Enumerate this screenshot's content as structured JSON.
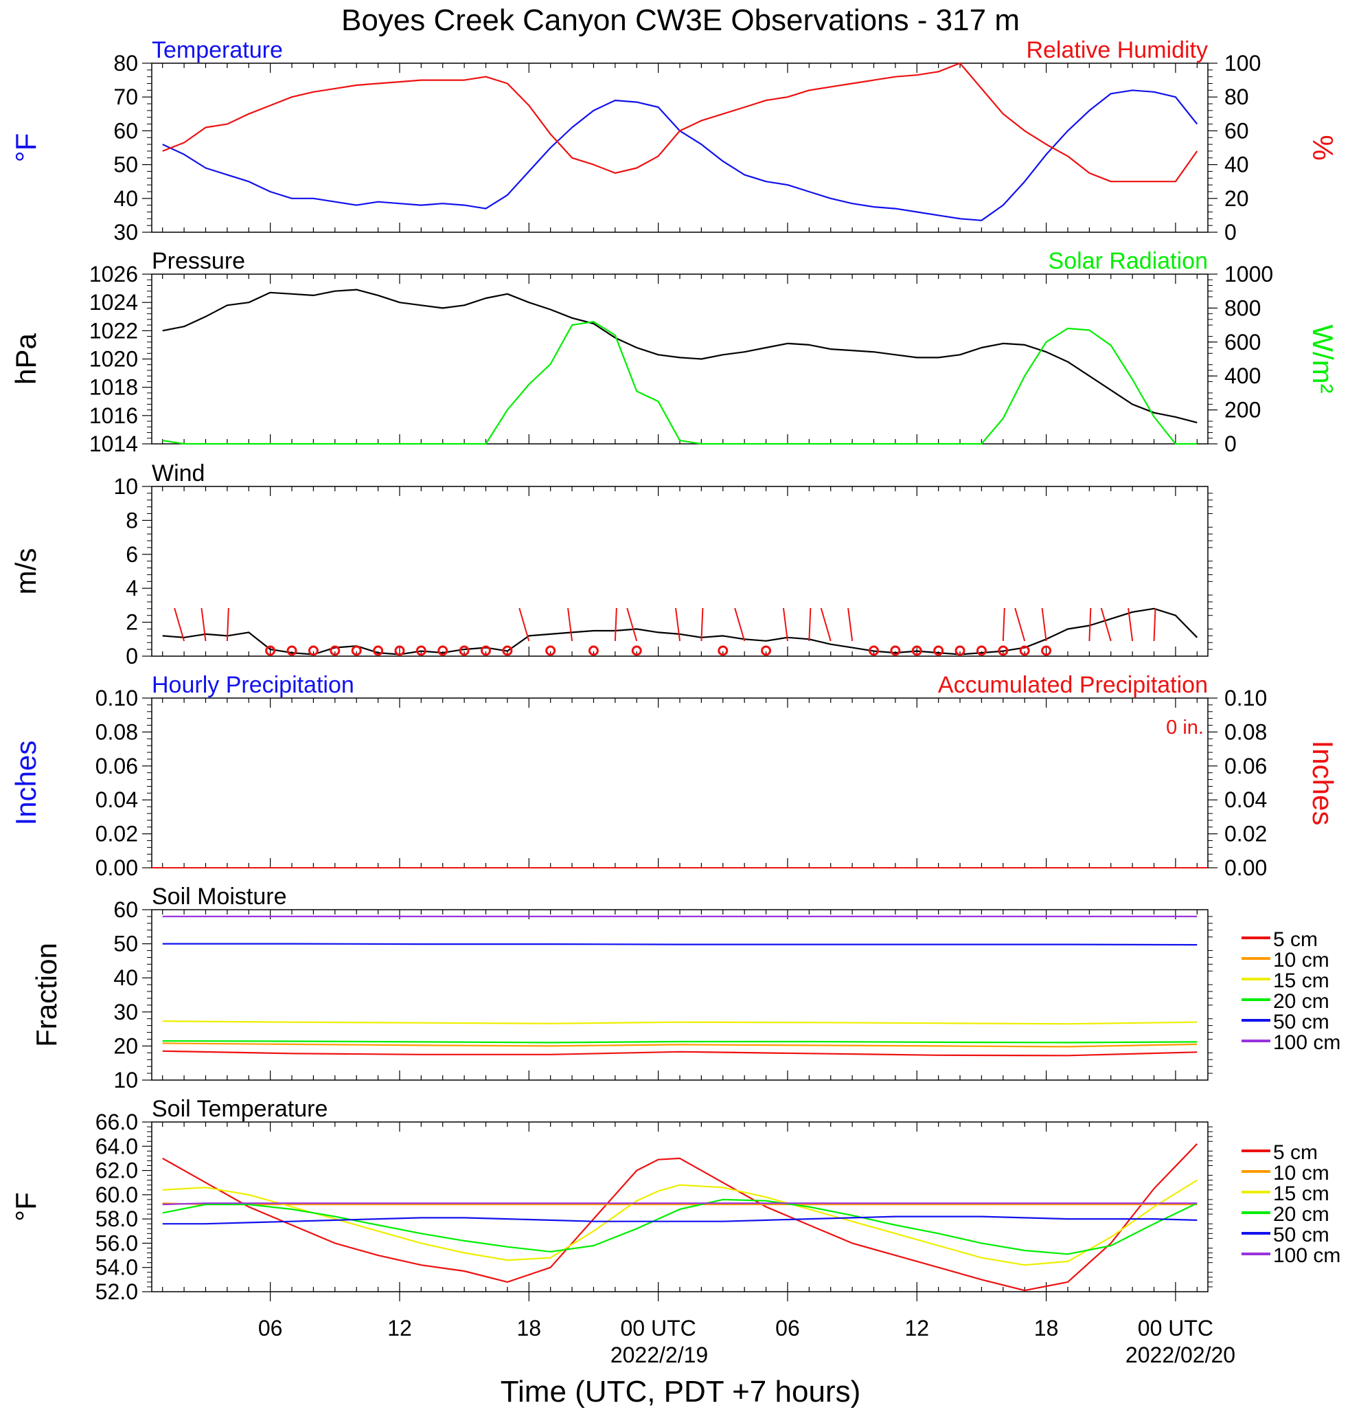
{
  "figure": {
    "title": "Boyes Creek Canyon CW3E Observations - 317 m",
    "xlabel": "Time (UTC, PDT +7 hours)",
    "x_ticks": [
      "06",
      "12",
      "18",
      "00 UTC",
      "06",
      "12",
      "18",
      "00 UTC"
    ],
    "x_dates": [
      "2022/2/19",
      "2022/02/20"
    ]
  },
  "colors": {
    "blue": "#1111ee",
    "red": "#ee1111",
    "green": "#00ee00",
    "black": "#000000",
    "orange": "#ff9900",
    "yellow": "#eeee00",
    "purple": "#9933dd"
  },
  "chart_data": [
    {
      "type": "line",
      "panel": "Temperature / Relative Humidity",
      "title_left": "Temperature",
      "title_right": "Relative Humidity",
      "ylabel_left": "°F",
      "ylabel_right": "%",
      "ylim_left": [
        30,
        80
      ],
      "ylim_right": [
        0,
        100
      ],
      "yticks_left": [
        "80",
        "70",
        "60",
        "50",
        "40",
        "30"
      ],
      "yticks_right": [
        "100",
        "80",
        "60",
        "40",
        "20",
        "0"
      ],
      "x_hours": [
        1,
        2,
        3,
        4,
        5,
        6,
        7,
        8,
        9,
        10,
        11,
        12,
        13,
        14,
        15,
        16,
        17,
        18,
        19,
        20,
        21,
        22,
        23,
        24,
        25,
        26,
        27,
        28,
        29,
        30,
        31,
        32,
        33,
        34,
        35,
        36,
        37,
        38,
        39,
        40,
        41,
        42,
        43,
        44,
        45,
        46,
        47,
        48,
        49
      ],
      "series": [
        {
          "name": "Temperature",
          "color": "#1111ee",
          "axis": "left",
          "values": [
            56,
            53,
            49,
            47,
            45,
            42,
            40,
            40,
            39,
            38,
            39,
            38.5,
            38,
            38.5,
            38,
            37,
            41,
            48,
            55,
            61,
            66,
            69,
            68.5,
            67,
            60,
            56,
            51,
            47,
            45,
            44,
            42,
            40,
            38.5,
            37.5,
            37,
            36,
            35,
            34,
            33.5,
            38,
            45,
            53,
            60,
            66,
            71,
            72,
            71.5,
            70,
            62
          ]
        },
        {
          "name": "Relative Humidity",
          "color": "#ee1111",
          "axis": "right",
          "values": [
            48,
            53,
            62,
            64,
            70,
            75,
            80,
            83,
            85,
            87,
            88,
            89,
            90,
            90,
            90,
            92,
            88,
            75,
            58,
            44,
            40,
            35,
            38,
            45,
            60,
            66,
            70,
            74,
            78,
            80,
            84,
            86,
            88,
            90,
            92,
            93,
            95,
            100,
            85,
            70,
            60,
            52,
            45,
            35,
            30,
            30,
            30,
            30,
            48
          ]
        }
      ]
    },
    {
      "type": "line",
      "panel": "Pressure / Solar Radiation",
      "title_left": "Pressure",
      "title_right": "Solar Radiation",
      "ylabel_left": "hPa",
      "ylabel_right": "W/m²",
      "ylim_left": [
        1014,
        1026
      ],
      "ylim_right": [
        0,
        1000
      ],
      "yticks_left": [
        "1026",
        "1024",
        "1022",
        "1020",
        "1018",
        "1016",
        "1014"
      ],
      "yticks_right": [
        "1000",
        "800",
        "600",
        "400",
        "200",
        "0"
      ],
      "x_hours": [
        1,
        2,
        3,
        4,
        5,
        6,
        7,
        8,
        9,
        10,
        11,
        12,
        13,
        14,
        15,
        16,
        17,
        18,
        19,
        20,
        21,
        22,
        23,
        24,
        25,
        26,
        27,
        28,
        29,
        30,
        31,
        32,
        33,
        34,
        35,
        36,
        37,
        38,
        39,
        40,
        41,
        42,
        43,
        44,
        45,
        46,
        47,
        48,
        49
      ],
      "series": [
        {
          "name": "Pressure",
          "color": "#000000",
          "axis": "left",
          "values": [
            1022,
            1022.3,
            1023,
            1023.8,
            1024,
            1024.7,
            1024.6,
            1024.5,
            1024.8,
            1024.9,
            1024.5,
            1024,
            1023.8,
            1023.6,
            1023.8,
            1024.3,
            1024.6,
            1024,
            1023.5,
            1022.9,
            1022.5,
            1021.5,
            1020.8,
            1020.3,
            1020.1,
            1020,
            1020.3,
            1020.5,
            1020.8,
            1021.1,
            1021,
            1020.7,
            1020.6,
            1020.5,
            1020.3,
            1020.1,
            1020.1,
            1020.3,
            1020.8,
            1021.1,
            1021,
            1020.5,
            1019.8,
            1018.8,
            1017.8,
            1016.8,
            1016.2,
            1015.9,
            1015.5
          ]
        },
        {
          "name": "Solar Radiation",
          "color": "#00ee00",
          "axis": "right",
          "values": [
            20,
            0,
            0,
            0,
            0,
            0,
            0,
            0,
            0,
            0,
            0,
            0,
            0,
            0,
            0,
            0,
            200,
            350,
            470,
            700,
            720,
            640,
            310,
            250,
            20,
            0,
            0,
            0,
            0,
            0,
            0,
            0,
            0,
            0,
            0,
            0,
            0,
            0,
            0,
            150,
            400,
            600,
            680,
            670,
            580,
            380,
            160,
            0,
            0
          ]
        }
      ]
    },
    {
      "type": "line",
      "panel": "Wind",
      "title_left": "Wind",
      "ylabel_left": "m/s",
      "ylim_left": [
        0,
        10
      ],
      "yticks_left": [
        "10",
        "8",
        "6",
        "4",
        "2",
        "0"
      ],
      "x_hours": [
        1,
        2,
        3,
        4,
        5,
        6,
        7,
        8,
        9,
        10,
        11,
        12,
        13,
        14,
        15,
        16,
        17,
        18,
        19,
        20,
        21,
        22,
        23,
        24,
        25,
        26,
        27,
        28,
        29,
        30,
        31,
        32,
        33,
        34,
        35,
        36,
        37,
        38,
        39,
        40,
        41,
        42,
        43,
        44,
        45,
        46,
        47,
        48,
        49
      ],
      "series": [
        {
          "name": "Wind speed",
          "color": "#000000",
          "values": [
            1.2,
            1.1,
            1.3,
            1.2,
            1.4,
            0.4,
            0.2,
            0.1,
            0.5,
            0.6,
            0.2,
            0.1,
            0.3,
            0.2,
            0.4,
            0.5,
            0.3,
            1.2,
            1.3,
            1.4,
            1.5,
            1.5,
            1.6,
            1.4,
            1.3,
            1.1,
            1.2,
            1.0,
            0.9,
            1.1,
            1.0,
            0.7,
            0.5,
            0.3,
            0.2,
            0.3,
            0.2,
            0.1,
            0.2,
            0.3,
            0.5,
            1.0,
            1.6,
            1.8,
            2.2,
            2.6,
            2.8,
            2.4,
            1.1
          ]
        }
      ],
      "calm_hours": [
        6,
        7,
        8,
        9,
        10,
        11,
        12,
        13,
        14,
        15,
        16,
        17,
        19,
        21,
        23,
        27,
        29,
        34,
        35,
        36,
        37,
        38,
        39,
        40,
        41,
        42
      ],
      "barb_hours": [
        2,
        3,
        4,
        18,
        20,
        22,
        23,
        25,
        26,
        28,
        30,
        31,
        32,
        33,
        40,
        41,
        42,
        44,
        45,
        46,
        47
      ]
    },
    {
      "type": "bar",
      "panel": "Precipitation",
      "title_left": "Hourly Precipitation",
      "title_right": "Accumulated Precipitation",
      "annotation": "0 in.",
      "ylabel_left": "Inches",
      "ylabel_right": "Inches",
      "ylim_left": [
        0,
        0.1
      ],
      "ylim_right": [
        0,
        0.1
      ],
      "yticks_left": [
        "0.10",
        "0.08",
        "0.06",
        "0.04",
        "0.02",
        "0.00"
      ],
      "yticks_right": [
        "0.10",
        "0.08",
        "0.06",
        "0.04",
        "0.02",
        "0.00"
      ],
      "series": [
        {
          "name": "Hourly Precipitation",
          "color": "#1111ee",
          "values": [
            0
          ]
        },
        {
          "name": "Accumulated Precipitation",
          "color": "#ee1111",
          "values": [
            0
          ]
        }
      ]
    },
    {
      "type": "line",
      "panel": "Soil Moisture",
      "title_left": "Soil Moisture",
      "ylabel_left": "Fraction",
      "ylim_left": [
        10,
        60
      ],
      "yticks_left": [
        "60",
        "50",
        "40",
        "30",
        "20",
        "10"
      ],
      "x_hours": [
        1,
        7,
        13,
        19,
        25,
        31,
        37,
        43,
        49
      ],
      "series": [
        {
          "name": "5 cm",
          "color": "#ee1111",
          "values": [
            18.5,
            17.8,
            17.5,
            17.5,
            18.3,
            17.8,
            17.3,
            17.2,
            18.2
          ]
        },
        {
          "name": "10 cm",
          "color": "#ff9900",
          "values": [
            20.8,
            20.5,
            20.2,
            20,
            20.4,
            20.2,
            20,
            19.8,
            20.5
          ]
        },
        {
          "name": "15 cm",
          "color": "#eeee00",
          "values": [
            27.3,
            27,
            26.8,
            26.6,
            27,
            26.9,
            26.7,
            26.5,
            27
          ]
        },
        {
          "name": "20 cm",
          "color": "#00ee00",
          "values": [
            21.5,
            21.4,
            21.2,
            21,
            21.3,
            21.3,
            21.1,
            21,
            21.2
          ]
        },
        {
          "name": "50 cm",
          "color": "#1111ee",
          "values": [
            50,
            50,
            49.9,
            49.9,
            49.8,
            49.8,
            49.8,
            49.8,
            49.7
          ]
        },
        {
          "name": "100 cm",
          "color": "#9933dd",
          "values": [
            58,
            58,
            58,
            58,
            58,
            58,
            58,
            58,
            58
          ]
        }
      ]
    },
    {
      "type": "line",
      "panel": "Soil Temperature",
      "title_left": "Soil Temperature",
      "ylabel_left": "°F",
      "ylim_left": [
        52,
        66
      ],
      "yticks_left": [
        "66.0",
        "64.0",
        "62.0",
        "60.0",
        "58.0",
        "56.0",
        "54.0",
        "52.0"
      ],
      "x_hours": [
        1,
        3,
        5,
        7,
        9,
        11,
        13,
        15,
        17,
        19,
        21,
        23,
        24,
        25,
        27,
        29,
        31,
        33,
        35,
        37,
        39,
        41,
        43,
        45,
        47,
        49
      ],
      "series": [
        {
          "name": "5 cm",
          "color": "#ee1111",
          "values": [
            63,
            61,
            59,
            57.5,
            56,
            55,
            54.2,
            53.7,
            52.8,
            54,
            58,
            62,
            62.9,
            63,
            61,
            59,
            57.5,
            56,
            55,
            54,
            53,
            52.1,
            52.8,
            56,
            60.5,
            64.2
          ]
        },
        {
          "name": "10 cm",
          "color": "#ff9900",
          "values": [
            59.3,
            59.2,
            59.2,
            59.2,
            59.2,
            59.2,
            59.2,
            59.2,
            59.2,
            59.2,
            59.2,
            59.2,
            59.2,
            59.2,
            59.2,
            59.2,
            59.2,
            59.2,
            59.2,
            59.2,
            59.2,
            59.2,
            59.2,
            59.2,
            59.2,
            59.2
          ]
        },
        {
          "name": "15 cm",
          "color": "#eeee00",
          "values": [
            60.4,
            60.6,
            60,
            59,
            58,
            57,
            56,
            55.2,
            54.6,
            54.8,
            57,
            59.5,
            60.3,
            60.8,
            60.6,
            59.8,
            58.8,
            57.8,
            56.8,
            55.8,
            54.8,
            54.2,
            54.5,
            56.5,
            59,
            61.2
          ]
        },
        {
          "name": "20 cm",
          "color": "#00ee00",
          "values": [
            58.5,
            59.2,
            59.2,
            58.8,
            58.2,
            57.5,
            56.8,
            56.2,
            55.7,
            55.3,
            55.8,
            57.2,
            58,
            58.8,
            59.6,
            59.5,
            59,
            58.3,
            57.5,
            56.8,
            56,
            55.4,
            55.1,
            55.8,
            57.6,
            59.3
          ]
        },
        {
          "name": "50 cm",
          "color": "#1111ee",
          "values": [
            57.6,
            57.6,
            57.7,
            57.8,
            57.9,
            58,
            58.1,
            58.1,
            58,
            57.9,
            57.8,
            57.8,
            57.8,
            57.8,
            57.8,
            57.9,
            58,
            58.1,
            58.2,
            58.2,
            58.2,
            58.1,
            58,
            58,
            58,
            57.9
          ]
        },
        {
          "name": "100 cm",
          "color": "#9933dd",
          "values": [
            59.2,
            59.3,
            59.3,
            59.3,
            59.3,
            59.3,
            59.3,
            59.3,
            59.3,
            59.3,
            59.3,
            59.3,
            59.3,
            59.3,
            59.3,
            59.3,
            59.3,
            59.3,
            59.3,
            59.3,
            59.3,
            59.3,
            59.3,
            59.3,
            59.3,
            59.3
          ]
        }
      ]
    }
  ],
  "legend": {
    "entries": [
      {
        "label": "5 cm",
        "color": "#ee1111"
      },
      {
        "label": "10 cm",
        "color": "#ff9900"
      },
      {
        "label": "15 cm",
        "color": "#eeee00"
      },
      {
        "label": "20 cm",
        "color": "#00ee00"
      },
      {
        "label": "50 cm",
        "color": "#1111ee"
      },
      {
        "label": "100 cm",
        "color": "#9933dd"
      }
    ]
  }
}
